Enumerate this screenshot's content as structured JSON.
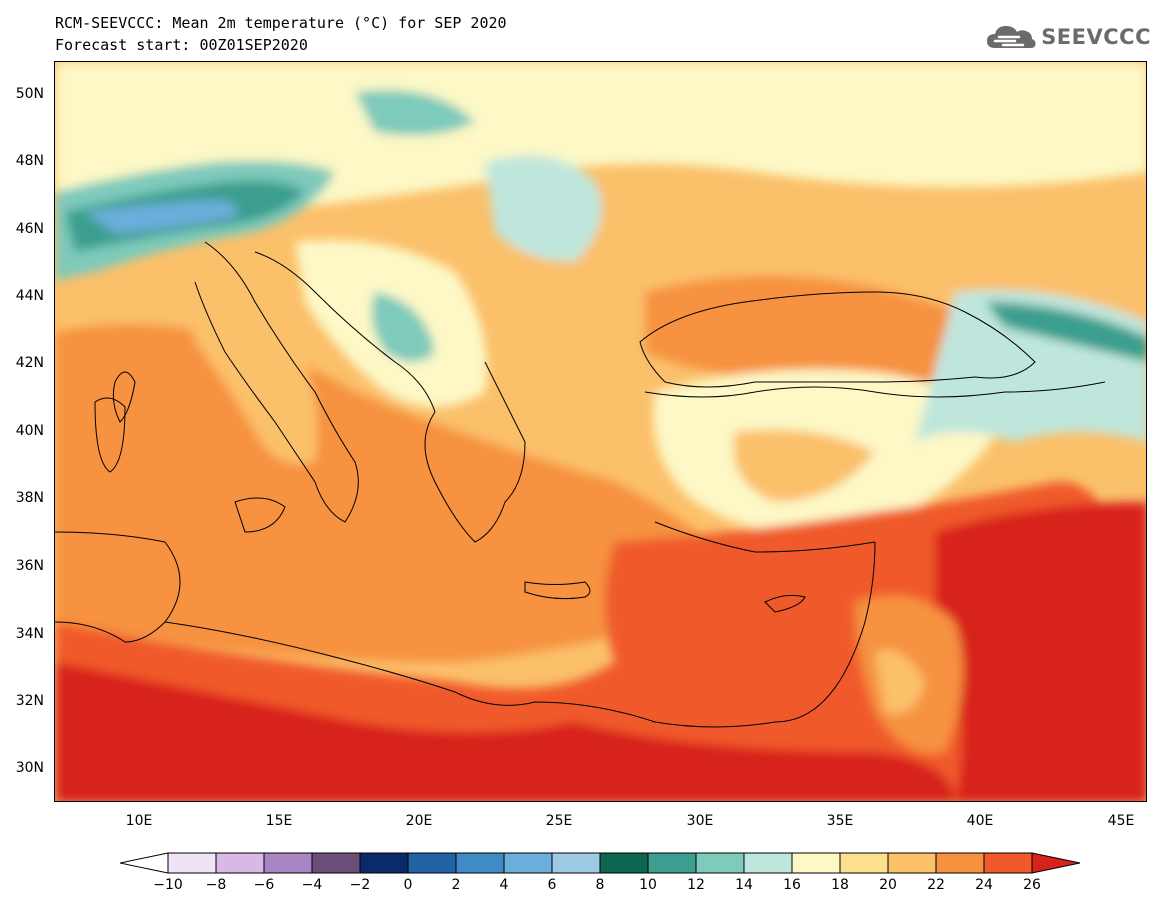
{
  "header": {
    "title": "RCM-SEEVCCC: Mean 2m temperature (°C) for SEP 2020",
    "subtitle": "Forecast start: 00Z01SEP2020",
    "logo_text": "SEEVCCC",
    "logo_icon": "cloud-icon"
  },
  "map": {
    "lon_range": [
      7,
      46
    ],
    "lat_range": [
      29,
      51
    ],
    "lat_ticks": [
      {
        "value": 30,
        "label": "30N"
      },
      {
        "value": 32,
        "label": "32N"
      },
      {
        "value": 34,
        "label": "34N"
      },
      {
        "value": 36,
        "label": "36N"
      },
      {
        "value": 38,
        "label": "38N"
      },
      {
        "value": 40,
        "label": "40N"
      },
      {
        "value": 42,
        "label": "42N"
      },
      {
        "value": 44,
        "label": "44N"
      },
      {
        "value": 46,
        "label": "46N"
      },
      {
        "value": 48,
        "label": "48N"
      },
      {
        "value": 50,
        "label": "50N"
      }
    ],
    "lon_ticks": [
      {
        "value": 10,
        "label": "10E"
      },
      {
        "value": 15,
        "label": "15E"
      },
      {
        "value": 20,
        "label": "20E"
      },
      {
        "value": 25,
        "label": "25E"
      },
      {
        "value": 30,
        "label": "30E"
      },
      {
        "value": 35,
        "label": "35E"
      },
      {
        "value": 40,
        "label": "40E"
      },
      {
        "value": 45,
        "label": "45E"
      }
    ]
  },
  "colorbar": {
    "levels": [
      "−10",
      "−8",
      "−6",
      "−4",
      "−2",
      "0",
      "2",
      "4",
      "6",
      "8",
      "10",
      "12",
      "14",
      "16",
      "18",
      "20",
      "22",
      "24",
      "26"
    ],
    "colors": [
      "#efe3f5",
      "#d8b8e6",
      "#a886c4",
      "#6b4f78",
      "#0b2a6b",
      "#2062a6",
      "#3f8bc6",
      "#6aaedb",
      "#9ecae6",
      "#0d6650",
      "#3b9e8e",
      "#7ecabb",
      "#bfe6dd",
      "#fdf8c6",
      "#fde08e",
      "#fbc06a",
      "#f6923f",
      "#f05a2b",
      "#d8221c"
    ],
    "under_color": "#ffffff",
    "over_color": "#d8221c"
  }
}
